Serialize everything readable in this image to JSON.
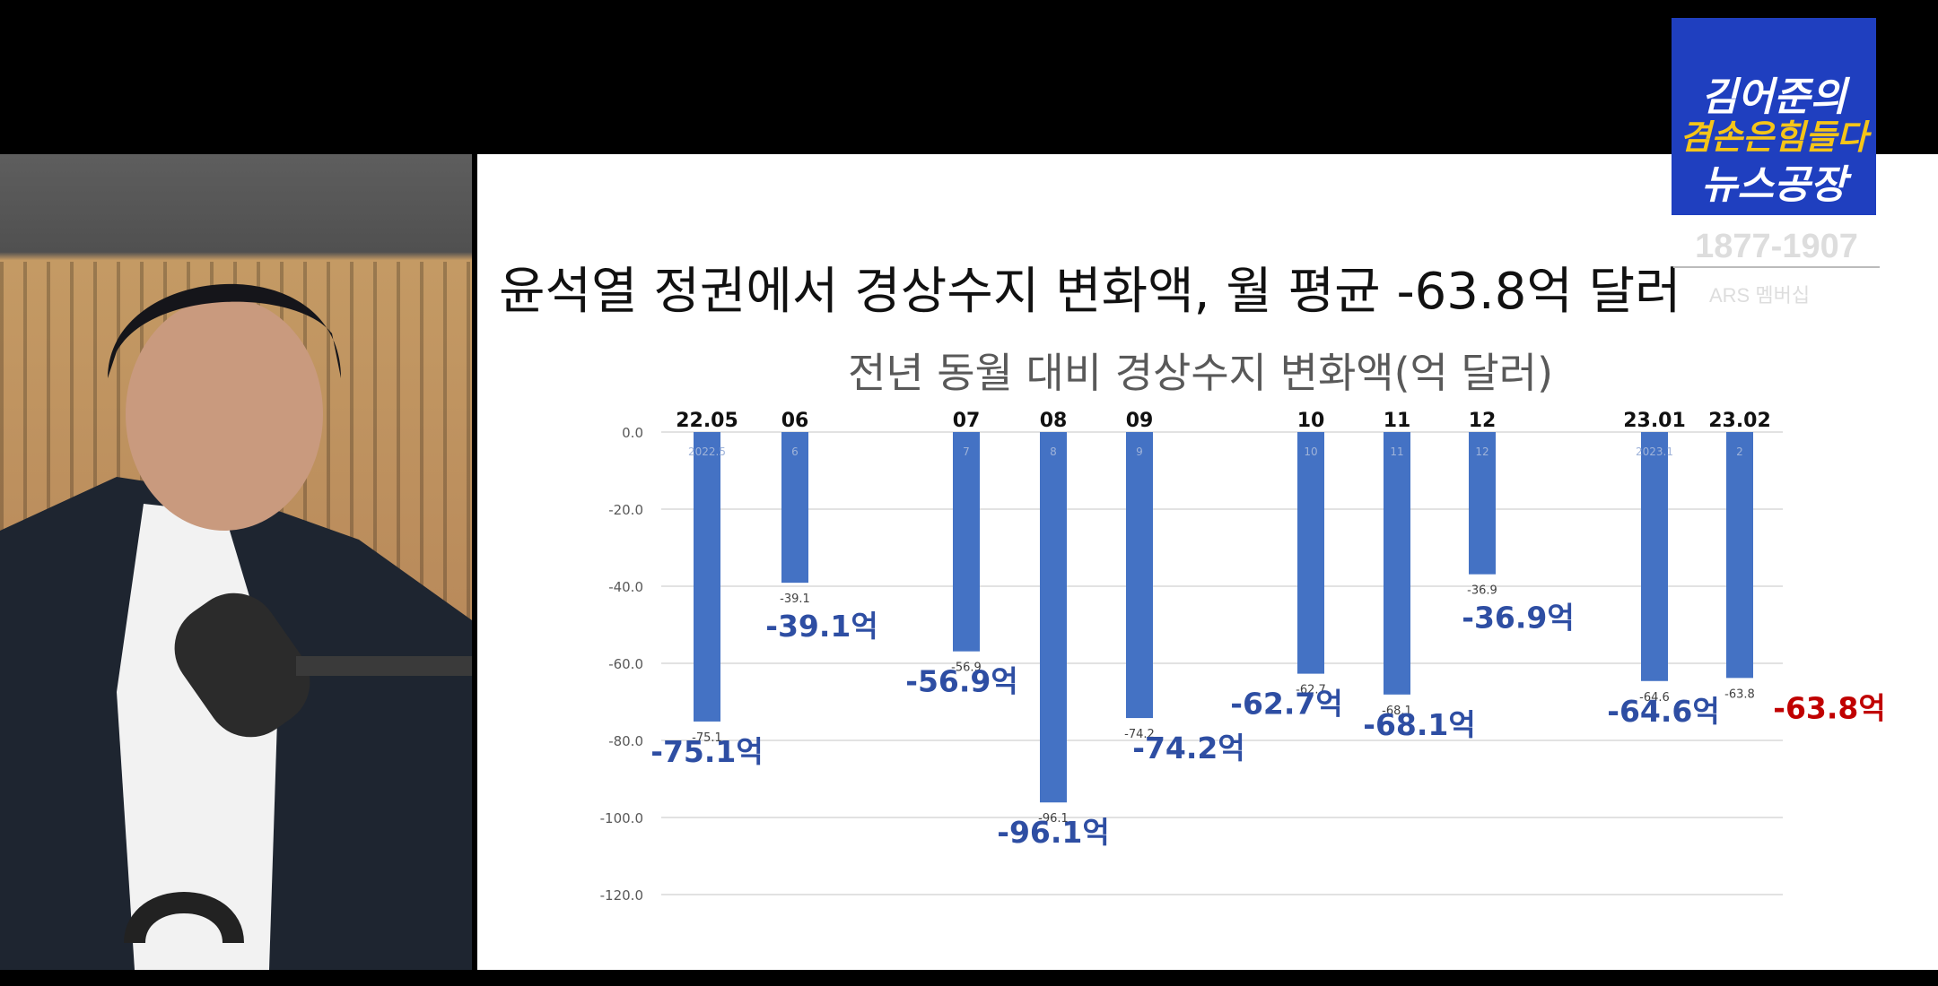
{
  "slide": {
    "title": "윤석열 정권에서 경상수지 변화액, 월 평균 -63.8억 달러"
  },
  "chart_data": {
    "type": "bar",
    "title": "전년 동월 대비 경상수지 변화액(억 달러)",
    "ylim": [
      -120,
      0
    ],
    "yticks": [
      "0.0",
      "-20.0",
      "-40.0",
      "-60.0",
      "-80.0",
      "-100.0",
      "-120.0"
    ],
    "grid": true,
    "categories": [
      "22.05",
      "06",
      "07",
      "08",
      "09",
      "10",
      "11",
      "12",
      "23.01",
      "23.02"
    ],
    "values": [
      -75.1,
      -39.1,
      -56.9,
      -96.1,
      -74.2,
      -62.7,
      -68.1,
      -36.9,
      -64.6,
      -63.8
    ],
    "small_labels": [
      "-75.1",
      "-39.1",
      "-56.9",
      "-96.1",
      "-74.2",
      "-62.7",
      "-68.1",
      "-36.9",
      "-64.6",
      "-63.8"
    ],
    "big_labels": [
      "-75.1억",
      "-39.1억",
      "-56.9억",
      "-96.1억",
      "-74.2억",
      "-62.7억",
      "-68.1억",
      "-36.9억",
      "-64.6억",
      "-63.8억"
    ],
    "inner_labels": [
      "2022.5",
      "6",
      "7",
      "8",
      "9",
      "10",
      "11",
      "12",
      "2023.1",
      "2"
    ],
    "bar_color": "#4472c4",
    "big_label_color": "#2e4ea3",
    "highlight_color": "#c00000"
  },
  "logo": {
    "line1": "김어준의",
    "line2": "겸손은힘들다",
    "line3": "뉴스공장",
    "years": "1877-1907",
    "sub": "ARS 멤버십"
  }
}
